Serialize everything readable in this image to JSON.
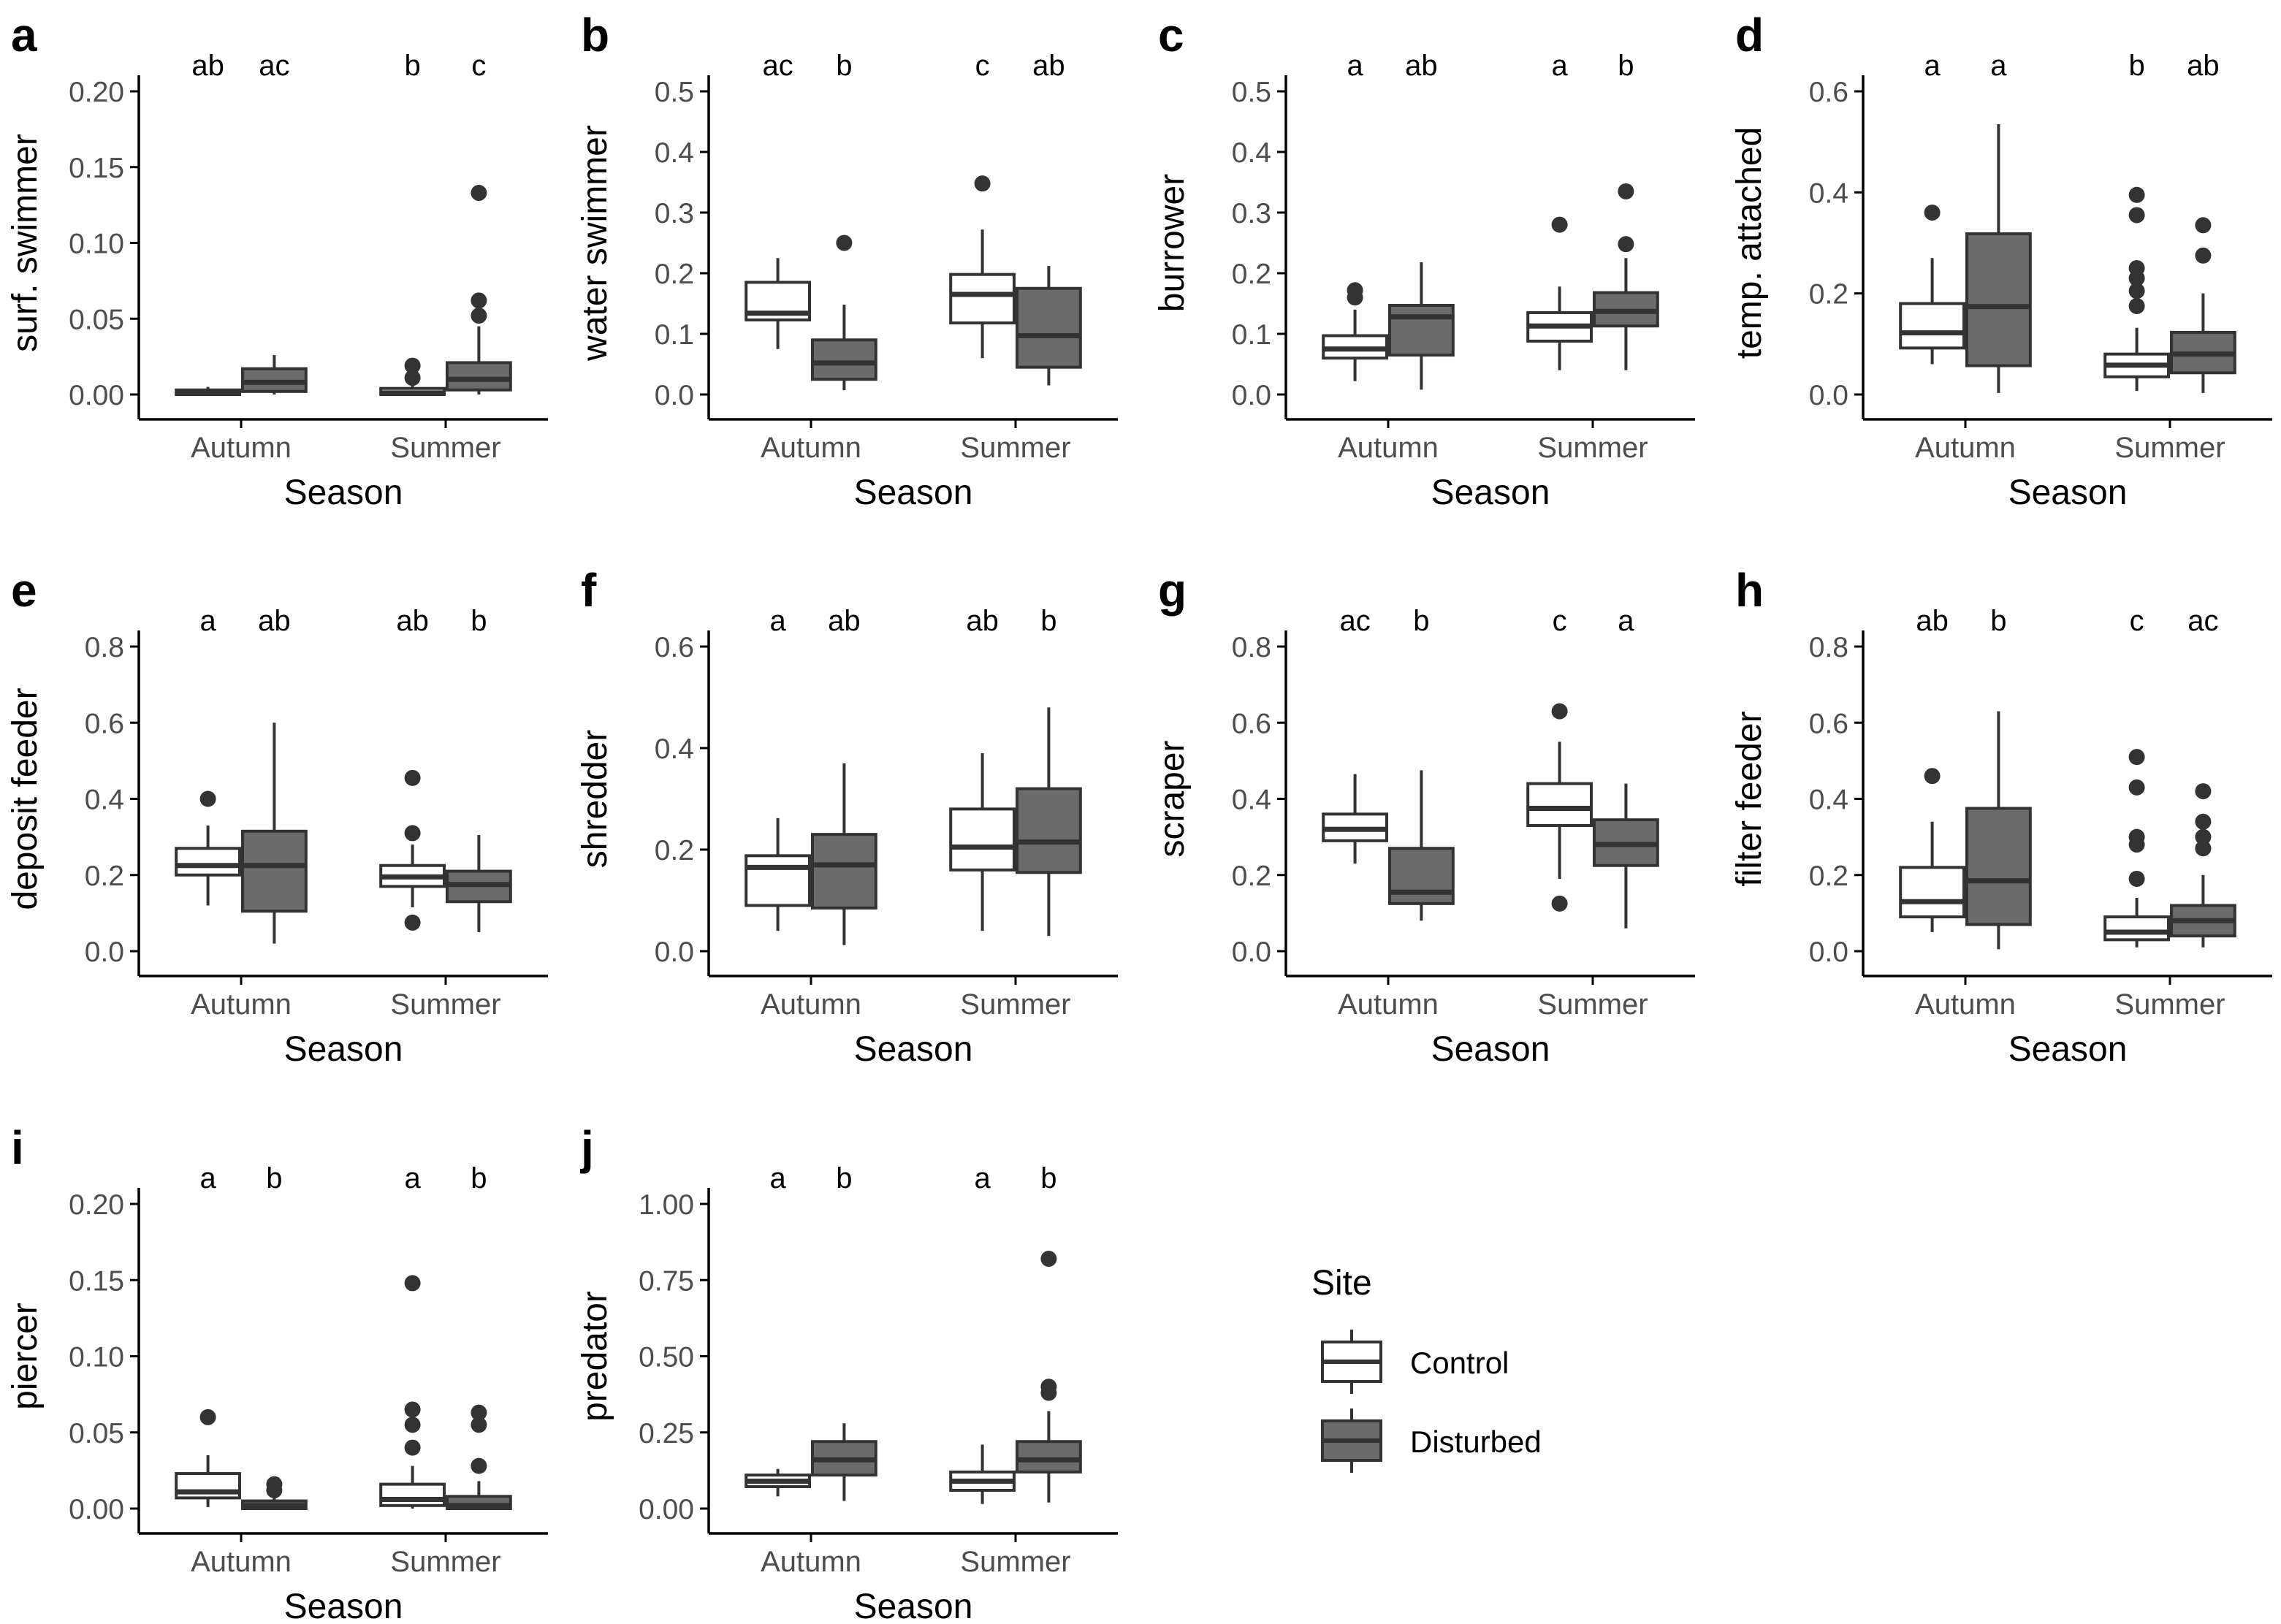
{
  "legend": {
    "title": "Site",
    "entries": [
      {
        "label": "Control",
        "color": "#ffffff"
      },
      {
        "label": "Disturbed",
        "color": "#6b6b6b"
      }
    ]
  },
  "colors": {
    "control_fill": "#ffffff",
    "disturbed_fill": "#6b6b6b",
    "outline": "#333333",
    "axis": "#000000",
    "tick_text": "#4d4d4d"
  },
  "chart_data": [
    {
      "panel": "a",
      "type": "boxplot",
      "xlabel": "Season",
      "ylabel": "surf. swimmer",
      "categories": [
        "Autumn",
        "Summer"
      ],
      "ylim": [
        0,
        0.2
      ],
      "ticks": [
        0,
        0.05,
        0.1,
        0.15,
        0.2
      ],
      "tick_labels": [
        "0.00",
        "0.05",
        "0.10",
        "0.15",
        "0.20"
      ],
      "boxes": [
        {
          "season": "Autumn",
          "site": "Control",
          "letter": "ab",
          "min": 0,
          "q1": 0,
          "median": 0.001,
          "q3": 0.003,
          "max": 0.005,
          "outliers": []
        },
        {
          "season": "Autumn",
          "site": "Disturbed",
          "letter": "ac",
          "min": 0,
          "q1": 0.002,
          "median": 0.008,
          "q3": 0.017,
          "max": 0.026,
          "outliers": []
        },
        {
          "season": "Summer",
          "site": "Control",
          "letter": "b",
          "min": 0,
          "q1": 0,
          "median": 0.001,
          "q3": 0.004,
          "max": 0.008,
          "outliers": [
            0.011,
            0.019
          ]
        },
        {
          "season": "Summer",
          "site": "Disturbed",
          "letter": "c",
          "min": 0,
          "q1": 0.003,
          "median": 0.01,
          "q3": 0.021,
          "max": 0.045,
          "outliers": [
            0.052,
            0.062,
            0.133
          ]
        }
      ]
    },
    {
      "panel": "b",
      "type": "boxplot",
      "xlabel": "Season",
      "ylabel": "water swimmer",
      "categories": [
        "Autumn",
        "Summer"
      ],
      "ylim": [
        0,
        0.5
      ],
      "ticks": [
        0,
        0.1,
        0.2,
        0.3,
        0.4,
        0.5
      ],
      "tick_labels": [
        "0.0",
        "0.1",
        "0.2",
        "0.3",
        "0.4",
        "0.5"
      ],
      "boxes": [
        {
          "season": "Autumn",
          "site": "Control",
          "letter": "ac",
          "min": 0.075,
          "q1": 0.123,
          "median": 0.134,
          "q3": 0.185,
          "max": 0.225,
          "outliers": []
        },
        {
          "season": "Autumn",
          "site": "Disturbed",
          "letter": "b",
          "min": 0.007,
          "q1": 0.025,
          "median": 0.052,
          "q3": 0.09,
          "max": 0.148,
          "outliers": [
            0.25
          ]
        },
        {
          "season": "Summer",
          "site": "Control",
          "letter": "c",
          "min": 0.06,
          "q1": 0.118,
          "median": 0.165,
          "q3": 0.198,
          "max": 0.272,
          "outliers": [
            0.348
          ]
        },
        {
          "season": "Summer",
          "site": "Disturbed",
          "letter": "ab",
          "min": 0.015,
          "q1": 0.045,
          "median": 0.097,
          "q3": 0.175,
          "max": 0.212,
          "outliers": []
        }
      ]
    },
    {
      "panel": "c",
      "type": "boxplot",
      "xlabel": "Season",
      "ylabel": "burrower",
      "categories": [
        "Autumn",
        "Summer"
      ],
      "ylim": [
        0,
        0.5
      ],
      "ticks": [
        0,
        0.1,
        0.2,
        0.3,
        0.4,
        0.5
      ],
      "tick_labels": [
        "0.0",
        "0.1",
        "0.2",
        "0.3",
        "0.4",
        "0.5"
      ],
      "boxes": [
        {
          "season": "Autumn",
          "site": "Control",
          "letter": "a",
          "min": 0.022,
          "q1": 0.06,
          "median": 0.075,
          "q3": 0.097,
          "max": 0.14,
          "outliers": [
            0.16,
            0.172
          ]
        },
        {
          "season": "Autumn",
          "site": "Disturbed",
          "letter": "ab",
          "min": 0.008,
          "q1": 0.065,
          "median": 0.128,
          "q3": 0.147,
          "max": 0.218,
          "outliers": []
        },
        {
          "season": "Summer",
          "site": "Control",
          "letter": "a",
          "min": 0.04,
          "q1": 0.088,
          "median": 0.113,
          "q3": 0.135,
          "max": 0.178,
          "outliers": [
            0.28
          ]
        },
        {
          "season": "Summer",
          "site": "Disturbed",
          "letter": "b",
          "min": 0.04,
          "q1": 0.113,
          "median": 0.137,
          "q3": 0.168,
          "max": 0.225,
          "outliers": [
            0.248,
            0.335
          ]
        }
      ]
    },
    {
      "panel": "d",
      "type": "boxplot",
      "xlabel": "Season",
      "ylabel": "temp. attached",
      "categories": [
        "Autumn",
        "Summer"
      ],
      "ylim": [
        0,
        0.6
      ],
      "ticks": [
        0,
        0.2,
        0.4,
        0.6
      ],
      "tick_labels": [
        "0.0",
        "0.2",
        "0.4",
        "0.6"
      ],
      "boxes": [
        {
          "season": "Autumn",
          "site": "Control",
          "letter": "a",
          "min": 0.06,
          "q1": 0.092,
          "median": 0.122,
          "q3": 0.18,
          "max": 0.27,
          "outliers": [
            0.36
          ]
        },
        {
          "season": "Autumn",
          "site": "Disturbed",
          "letter": "a",
          "min": 0.003,
          "q1": 0.057,
          "median": 0.174,
          "q3": 0.318,
          "max": 0.535,
          "outliers": []
        },
        {
          "season": "Summer",
          "site": "Control",
          "letter": "b",
          "min": 0.007,
          "q1": 0.035,
          "median": 0.058,
          "q3": 0.08,
          "max": 0.132,
          "outliers": [
            0.175,
            0.205,
            0.23,
            0.25,
            0.355,
            0.395
          ]
        },
        {
          "season": "Summer",
          "site": "Disturbed",
          "letter": "ab",
          "min": 0.003,
          "q1": 0.043,
          "median": 0.08,
          "q3": 0.123,
          "max": 0.2,
          "outliers": [
            0.275,
            0.335
          ]
        }
      ]
    },
    {
      "panel": "e",
      "type": "boxplot",
      "xlabel": "Season",
      "ylabel": "deposit feeder",
      "categories": [
        "Autumn",
        "Summer"
      ],
      "ylim": [
        0,
        0.8
      ],
      "ticks": [
        0,
        0.2,
        0.4,
        0.6,
        0.8
      ],
      "tick_labels": [
        "0.0",
        "0.2",
        "0.4",
        "0.6",
        "0.8"
      ],
      "boxes": [
        {
          "season": "Autumn",
          "site": "Control",
          "letter": "a",
          "min": 0.12,
          "q1": 0.2,
          "median": 0.225,
          "q3": 0.27,
          "max": 0.33,
          "outliers": [
            0.4
          ]
        },
        {
          "season": "Autumn",
          "site": "Disturbed",
          "letter": "ab",
          "min": 0.02,
          "q1": 0.105,
          "median": 0.225,
          "q3": 0.315,
          "max": 0.6,
          "outliers": []
        },
        {
          "season": "Summer",
          "site": "Control",
          "letter": "ab",
          "min": 0.115,
          "q1": 0.17,
          "median": 0.195,
          "q3": 0.225,
          "max": 0.28,
          "outliers": [
            0.075,
            0.31,
            0.455
          ]
        },
        {
          "season": "Summer",
          "site": "Disturbed",
          "letter": "b",
          "min": 0.05,
          "q1": 0.13,
          "median": 0.175,
          "q3": 0.21,
          "max": 0.305,
          "outliers": []
        }
      ]
    },
    {
      "panel": "f",
      "type": "boxplot",
      "xlabel": "Season",
      "ylabel": "shredder",
      "categories": [
        "Autumn",
        "Summer"
      ],
      "ylim": [
        0,
        0.6
      ],
      "ticks": [
        0,
        0.2,
        0.4,
        0.6
      ],
      "tick_labels": [
        "0.0",
        "0.2",
        "0.4",
        "0.6"
      ],
      "boxes": [
        {
          "season": "Autumn",
          "site": "Control",
          "letter": "a",
          "min": 0.04,
          "q1": 0.09,
          "median": 0.165,
          "q3": 0.188,
          "max": 0.262,
          "outliers": []
        },
        {
          "season": "Autumn",
          "site": "Disturbed",
          "letter": "ab",
          "min": 0.012,
          "q1": 0.085,
          "median": 0.17,
          "q3": 0.23,
          "max": 0.37,
          "outliers": []
        },
        {
          "season": "Summer",
          "site": "Control",
          "letter": "ab",
          "min": 0.04,
          "q1": 0.16,
          "median": 0.205,
          "q3": 0.28,
          "max": 0.39,
          "outliers": []
        },
        {
          "season": "Summer",
          "site": "Disturbed",
          "letter": "b",
          "min": 0.03,
          "q1": 0.155,
          "median": 0.215,
          "q3": 0.32,
          "max": 0.48,
          "outliers": []
        }
      ]
    },
    {
      "panel": "g",
      "type": "boxplot",
      "xlabel": "Season",
      "ylabel": "scraper",
      "categories": [
        "Autumn",
        "Summer"
      ],
      "ylim": [
        0,
        0.8
      ],
      "ticks": [
        0,
        0.2,
        0.4,
        0.6,
        0.8
      ],
      "tick_labels": [
        "0.0",
        "0.2",
        "0.4",
        "0.6",
        "0.8"
      ],
      "boxes": [
        {
          "season": "Autumn",
          "site": "Control",
          "letter": "ac",
          "min": 0.23,
          "q1": 0.29,
          "median": 0.32,
          "q3": 0.36,
          "max": 0.465,
          "outliers": []
        },
        {
          "season": "Autumn",
          "site": "Disturbed",
          "letter": "b",
          "min": 0.08,
          "q1": 0.125,
          "median": 0.155,
          "q3": 0.27,
          "max": 0.475,
          "outliers": []
        },
        {
          "season": "Summer",
          "site": "Control",
          "letter": "c",
          "min": 0.19,
          "q1": 0.33,
          "median": 0.375,
          "q3": 0.44,
          "max": 0.55,
          "outliers": [
            0.125,
            0.63
          ]
        },
        {
          "season": "Summer",
          "site": "Disturbed",
          "letter": "a",
          "min": 0.06,
          "q1": 0.225,
          "median": 0.28,
          "q3": 0.345,
          "max": 0.44,
          "outliers": []
        }
      ]
    },
    {
      "panel": "h",
      "type": "boxplot",
      "xlabel": "Season",
      "ylabel": "filter feeder",
      "categories": [
        "Autumn",
        "Summer"
      ],
      "ylim": [
        0,
        0.8
      ],
      "ticks": [
        0,
        0.2,
        0.4,
        0.6,
        0.8
      ],
      "tick_labels": [
        "0.0",
        "0.2",
        "0.4",
        "0.6",
        "0.8"
      ],
      "boxes": [
        {
          "season": "Autumn",
          "site": "Control",
          "letter": "ab",
          "min": 0.05,
          "q1": 0.09,
          "median": 0.13,
          "q3": 0.22,
          "max": 0.34,
          "outliers": [
            0.46
          ]
        },
        {
          "season": "Autumn",
          "site": "Disturbed",
          "letter": "b",
          "min": 0.005,
          "q1": 0.07,
          "median": 0.185,
          "q3": 0.375,
          "max": 0.63,
          "outliers": []
        },
        {
          "season": "Summer",
          "site": "Control",
          "letter": "c",
          "min": 0.01,
          "q1": 0.03,
          "median": 0.05,
          "q3": 0.09,
          "max": 0.14,
          "outliers": [
            0.19,
            0.28,
            0.3,
            0.43,
            0.51
          ]
        },
        {
          "season": "Summer",
          "site": "Disturbed",
          "letter": "ac",
          "min": 0.01,
          "q1": 0.04,
          "median": 0.08,
          "q3": 0.12,
          "max": 0.2,
          "outliers": [
            0.27,
            0.3,
            0.34,
            0.42
          ]
        }
      ]
    },
    {
      "panel": "i",
      "type": "boxplot",
      "xlabel": "Season",
      "ylabel": "piercer",
      "categories": [
        "Autumn",
        "Summer"
      ],
      "ylim": [
        0,
        0.2
      ],
      "ticks": [
        0,
        0.05,
        0.1,
        0.15,
        0.2
      ],
      "tick_labels": [
        "0.00",
        "0.05",
        "0.10",
        "0.15",
        "0.20"
      ],
      "boxes": [
        {
          "season": "Autumn",
          "site": "Control",
          "letter": "a",
          "min": 0.001,
          "q1": 0.007,
          "median": 0.011,
          "q3": 0.023,
          "max": 0.035,
          "outliers": [
            0.06
          ]
        },
        {
          "season": "Autumn",
          "site": "Disturbed",
          "letter": "b",
          "min": 0,
          "q1": 0,
          "median": 0.002,
          "q3": 0.005,
          "max": 0.008,
          "outliers": [
            0.012,
            0.016
          ]
        },
        {
          "season": "Summer",
          "site": "Control",
          "letter": "a",
          "min": 0,
          "q1": 0.002,
          "median": 0.006,
          "q3": 0.016,
          "max": 0.028,
          "outliers": [
            0.04,
            0.055,
            0.065,
            0.148
          ]
        },
        {
          "season": "Summer",
          "site": "Disturbed",
          "letter": "b",
          "min": 0,
          "q1": 0,
          "median": 0.002,
          "q3": 0.008,
          "max": 0.018,
          "outliers": [
            0.028,
            0.055,
            0.063
          ]
        }
      ]
    },
    {
      "panel": "j",
      "type": "boxplot",
      "xlabel": "Season",
      "ylabel": "predator",
      "categories": [
        "Autumn",
        "Summer"
      ],
      "ylim": [
        0,
        1
      ],
      "ticks": [
        0,
        0.25,
        0.5,
        0.75,
        1
      ],
      "tick_labels": [
        "0.00",
        "0.25",
        "0.50",
        "0.75",
        "1.00"
      ],
      "boxes": [
        {
          "season": "Autumn",
          "site": "Control",
          "letter": "a",
          "min": 0.04,
          "q1": 0.072,
          "median": 0.09,
          "q3": 0.11,
          "max": 0.13,
          "outliers": []
        },
        {
          "season": "Autumn",
          "site": "Disturbed",
          "letter": "b",
          "min": 0.025,
          "q1": 0.11,
          "median": 0.16,
          "q3": 0.22,
          "max": 0.28,
          "outliers": []
        },
        {
          "season": "Summer",
          "site": "Control",
          "letter": "a",
          "min": 0.015,
          "q1": 0.06,
          "median": 0.09,
          "q3": 0.12,
          "max": 0.21,
          "outliers": []
        },
        {
          "season": "Summer",
          "site": "Disturbed",
          "letter": "b",
          "min": 0.02,
          "q1": 0.12,
          "median": 0.16,
          "q3": 0.22,
          "max": 0.32,
          "outliers": [
            0.38,
            0.4,
            0.82
          ]
        }
      ]
    }
  ]
}
